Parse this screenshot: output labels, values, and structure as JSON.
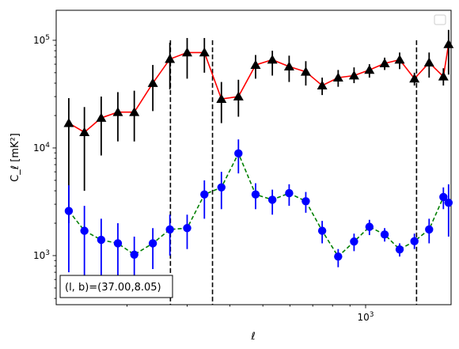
{
  "chart_data": {
    "type": "scatter",
    "xscale": "log",
    "yscale": "log",
    "xlim": [
      124,
      1780
    ],
    "ylim": [
      350,
      190000
    ],
    "xlabel": "ℓ",
    "ylabel": "C_ℓ  [mK²]",
    "x_ticks": [
      {
        "value": 1000,
        "label": "10^3",
        "base": "10",
        "exp": "3"
      }
    ],
    "y_ticks": [
      {
        "value": 1000,
        "label": "10^3",
        "base": "10",
        "exp": "3"
      },
      {
        "value": 10000,
        "label": "10^4",
        "base": "10",
        "exp": "4"
      },
      {
        "value": 100000,
        "label": "10^5",
        "base": "10",
        "exp": "5"
      }
    ],
    "legend": {
      "position": "top-right",
      "entries": []
    },
    "annotation": {
      "text": "(l, b)=(37.00,8.05)",
      "position": "bottom-left"
    },
    "vlines": [
      268,
      356,
      1410
    ],
    "series": [
      {
        "marker": "triangle",
        "color": "#000000",
        "line_color": "#ff0000",
        "line_style": "solid",
        "points": [
          {
            "x": 135,
            "y": 17000,
            "lo": 2000,
            "hi": 29000
          },
          {
            "x": 150,
            "y": 14000,
            "lo": 4000,
            "hi": 24000
          },
          {
            "x": 168,
            "y": 19000,
            "lo": 8500,
            "hi": 30000
          },
          {
            "x": 188,
            "y": 21500,
            "lo": 11500,
            "hi": 33000
          },
          {
            "x": 210,
            "y": 21500,
            "lo": 11500,
            "hi": 34000
          },
          {
            "x": 238,
            "y": 40000,
            "lo": 22000,
            "hi": 59000
          },
          {
            "x": 267,
            "y": 67000,
            "lo": 35000,
            "hi": 95000
          },
          {
            "x": 300,
            "y": 77000,
            "lo": 44000,
            "hi": 105000
          },
          {
            "x": 337,
            "y": 77000,
            "lo": 50000,
            "hi": 105000
          },
          {
            "x": 378,
            "y": 28500,
            "lo": 17000,
            "hi": 41000
          },
          {
            "x": 424,
            "y": 30000,
            "lo": 19500,
            "hi": 43000
          },
          {
            "x": 476,
            "y": 59000,
            "lo": 44000,
            "hi": 73000
          },
          {
            "x": 533,
            "y": 66000,
            "lo": 47000,
            "hi": 80000
          },
          {
            "x": 597,
            "y": 57000,
            "lo": 41000,
            "hi": 72000
          },
          {
            "x": 668,
            "y": 51000,
            "lo": 38000,
            "hi": 64000
          },
          {
            "x": 746,
            "y": 38000,
            "lo": 31000,
            "hi": 45000
          },
          {
            "x": 831,
            "y": 45000,
            "lo": 37000,
            "hi": 53000
          },
          {
            "x": 925,
            "y": 47000,
            "lo": 40000,
            "hi": 56000
          },
          {
            "x": 1026,
            "y": 53000,
            "lo": 45000,
            "hi": 60000
          },
          {
            "x": 1137,
            "y": 61000,
            "lo": 53000,
            "hi": 69000
          },
          {
            "x": 1258,
            "y": 66000,
            "lo": 54000,
            "hi": 77000
          },
          {
            "x": 1390,
            "y": 44000,
            "lo": 38000,
            "hi": 50000
          },
          {
            "x": 1535,
            "y": 62000,
            "lo": 45000,
            "hi": 77000
          },
          {
            "x": 1690,
            "y": 46000,
            "lo": 38000,
            "hi": 55000
          },
          {
            "x": 1750,
            "y": 92000,
            "lo": 48000,
            "hi": 125000
          }
        ]
      },
      {
        "marker": "circle",
        "color": "#0000ff",
        "line_color": "#008000",
        "line_style": "dashed",
        "points": [
          {
            "x": 135,
            "y": 2600,
            "lo": 700,
            "hi": 4500
          },
          {
            "x": 150,
            "y": 1700,
            "lo": 600,
            "hi": 2900
          },
          {
            "x": 168,
            "y": 1400,
            "lo": 520,
            "hi": 2200
          },
          {
            "x": 188,
            "y": 1300,
            "lo": 530,
            "hi": 2000
          },
          {
            "x": 210,
            "y": 1020,
            "lo": 500,
            "hi": 1500
          },
          {
            "x": 238,
            "y": 1300,
            "lo": 750,
            "hi": 1800
          },
          {
            "x": 267,
            "y": 1750,
            "lo": 1000,
            "hi": 2400
          },
          {
            "x": 300,
            "y": 1800,
            "lo": 1150,
            "hi": 2400
          },
          {
            "x": 337,
            "y": 3700,
            "lo": 2200,
            "hi": 5000
          },
          {
            "x": 378,
            "y": 4300,
            "lo": 2700,
            "hi": 6000
          },
          {
            "x": 424,
            "y": 8900,
            "lo": 5800,
            "hi": 12000
          },
          {
            "x": 476,
            "y": 3700,
            "lo": 2700,
            "hi": 4700
          },
          {
            "x": 533,
            "y": 3300,
            "lo": 2400,
            "hi": 4100
          },
          {
            "x": 597,
            "y": 3800,
            "lo": 2900,
            "hi": 4600
          },
          {
            "x": 668,
            "y": 3200,
            "lo": 2500,
            "hi": 3900
          },
          {
            "x": 746,
            "y": 1700,
            "lo": 1300,
            "hi": 2100
          },
          {
            "x": 831,
            "y": 980,
            "lo": 780,
            "hi": 1150
          },
          {
            "x": 925,
            "y": 1350,
            "lo": 1100,
            "hi": 1600
          },
          {
            "x": 1026,
            "y": 1850,
            "lo": 1550,
            "hi": 2150
          },
          {
            "x": 1137,
            "y": 1570,
            "lo": 1350,
            "hi": 1800
          },
          {
            "x": 1258,
            "y": 1140,
            "lo": 980,
            "hi": 1300
          },
          {
            "x": 1390,
            "y": 1360,
            "lo": 1150,
            "hi": 1600
          },
          {
            "x": 1535,
            "y": 1750,
            "lo": 1300,
            "hi": 2200
          },
          {
            "x": 1690,
            "y": 3500,
            "lo": 2700,
            "hi": 4300
          },
          {
            "x": 1750,
            "y": 3100,
            "lo": 1500,
            "hi": 4600
          }
        ]
      }
    ]
  }
}
